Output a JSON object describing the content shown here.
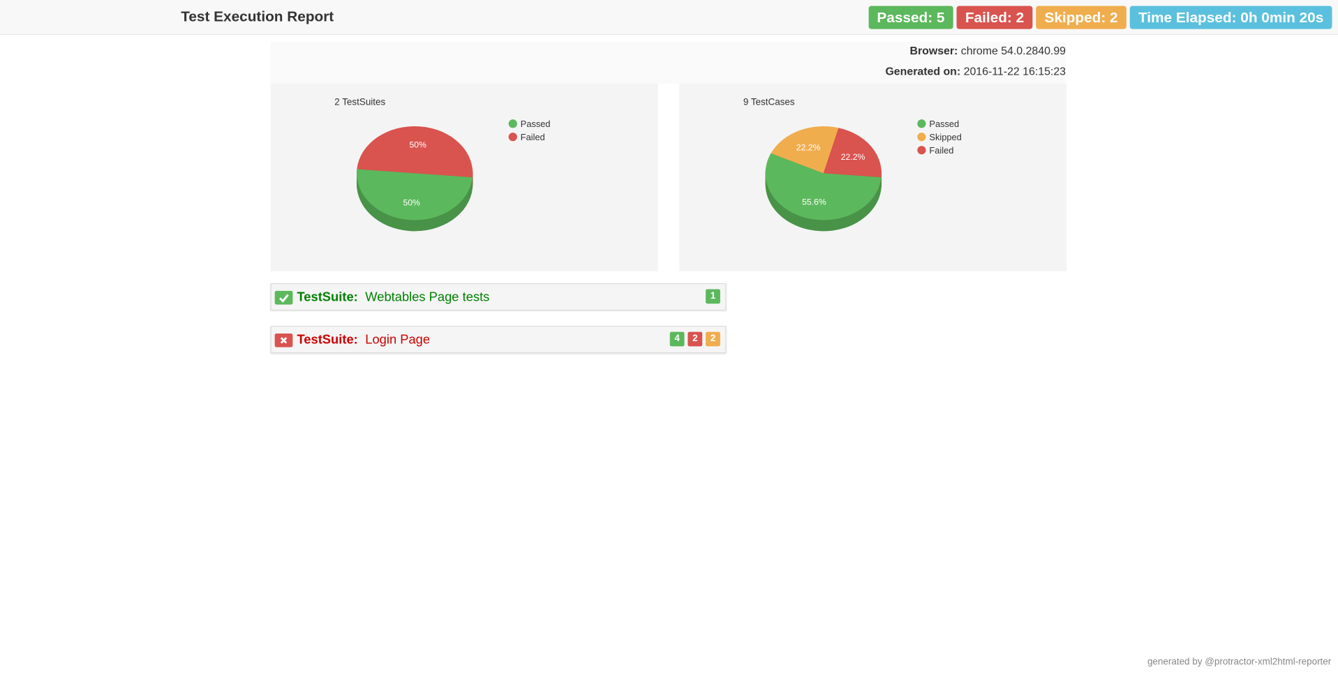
{
  "header": {
    "title": "Test Execution Report",
    "badges": [
      "Passed: 5",
      "Failed: 2",
      "Skipped: 2",
      "Time Elapsed: 0h 0min 20s"
    ]
  },
  "info": {
    "browser_label": "Browser:",
    "browser": "chrome 54.0.2840.99",
    "generated_label": "Generated on:",
    "generated": "2016-11-22 16:15:23"
  },
  "chart_data": [
    {
      "type": "pie",
      "title": "2 TestSuites",
      "categories": [
        "Passed",
        "Failed"
      ],
      "values": [
        50,
        50
      ],
      "value_labels": [
        "50%",
        "50%"
      ],
      "colors": [
        "#5cb85c",
        "#d9534f"
      ]
    },
    {
      "type": "pie",
      "title": "9 TestCases",
      "categories": [
        "Passed",
        "Skipped",
        "Failed"
      ],
      "values": [
        55.6,
        22.2,
        22.2
      ],
      "value_labels": [
        "55.6%",
        "22.2%",
        "22.2%"
      ],
      "colors": [
        "#5cb85c",
        "#f0ad4e",
        "#d9534f"
      ]
    }
  ],
  "suites": [
    {
      "label": "TestSuite:",
      "name": "Webtables Page tests",
      "status": "passed",
      "counts": [
        {
          "value": 1,
          "color": "#5cb85c"
        }
      ]
    },
    {
      "label": "TestSuite:",
      "name": "Login Page",
      "status": "failed",
      "counts": [
        {
          "value": 4,
          "color": "#5cb85c"
        },
        {
          "value": 2,
          "color": "#d9534f"
        },
        {
          "value": 2,
          "color": "#f0ad4e"
        }
      ]
    }
  ],
  "footer": "generated by @protractor-xml2html-reporter"
}
